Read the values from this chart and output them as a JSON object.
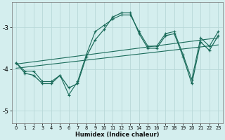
{
  "xlabel": "Humidex (Indice chaleur)",
  "ylabel": "",
  "background_color": "#d4eeee",
  "grid_color": "#b8d8d8",
  "line_color": "#1a6b5a",
  "xlim": [
    -0.5,
    23.5
  ],
  "ylim": [
    -5.3,
    -2.4
  ],
  "yticks": [
    -5,
    -4,
    -3
  ],
  "xticks": [
    0,
    1,
    2,
    3,
    4,
    5,
    6,
    7,
    8,
    9,
    10,
    11,
    12,
    13,
    14,
    15,
    16,
    17,
    18,
    19,
    20,
    21,
    22,
    23
  ],
  "jagged_x": [
    0,
    1,
    2,
    3,
    4,
    5,
    6,
    7,
    8,
    9,
    10,
    11,
    12,
    13,
    14,
    15,
    16,
    17,
    18,
    19,
    20,
    21,
    22,
    23
  ],
  "jagged_y": [
    -3.85,
    -4.1,
    -4.15,
    -4.35,
    -4.35,
    -4.15,
    -4.45,
    -4.35,
    -3.7,
    -3.3,
    -3.05,
    -2.75,
    -2.65,
    -2.65,
    -3.15,
    -3.5,
    -3.5,
    -3.2,
    -3.15,
    -3.7,
    -4.35,
    -3.35,
    -3.55,
    -3.2
  ],
  "smooth_x": [
    0,
    1,
    2,
    3,
    4,
    5,
    6,
    7,
    8,
    9,
    10,
    11,
    12,
    13,
    14,
    15,
    16,
    17,
    18,
    19,
    20,
    21,
    22,
    23
  ],
  "smooth_y": [
    -3.85,
    -4.05,
    -4.05,
    -4.3,
    -4.3,
    -4.15,
    -4.62,
    -4.3,
    -3.65,
    -3.1,
    -2.95,
    -2.8,
    -2.7,
    -2.7,
    -3.1,
    -3.45,
    -3.45,
    -3.15,
    -3.1,
    -3.65,
    -4.25,
    -3.25,
    -3.45,
    -3.1
  ],
  "trend1_x": [
    0,
    23
  ],
  "trend1_y": [
    -3.88,
    -3.25
  ],
  "trend2_x": [
    0,
    23
  ],
  "trend2_y": [
    -3.98,
    -3.42
  ]
}
